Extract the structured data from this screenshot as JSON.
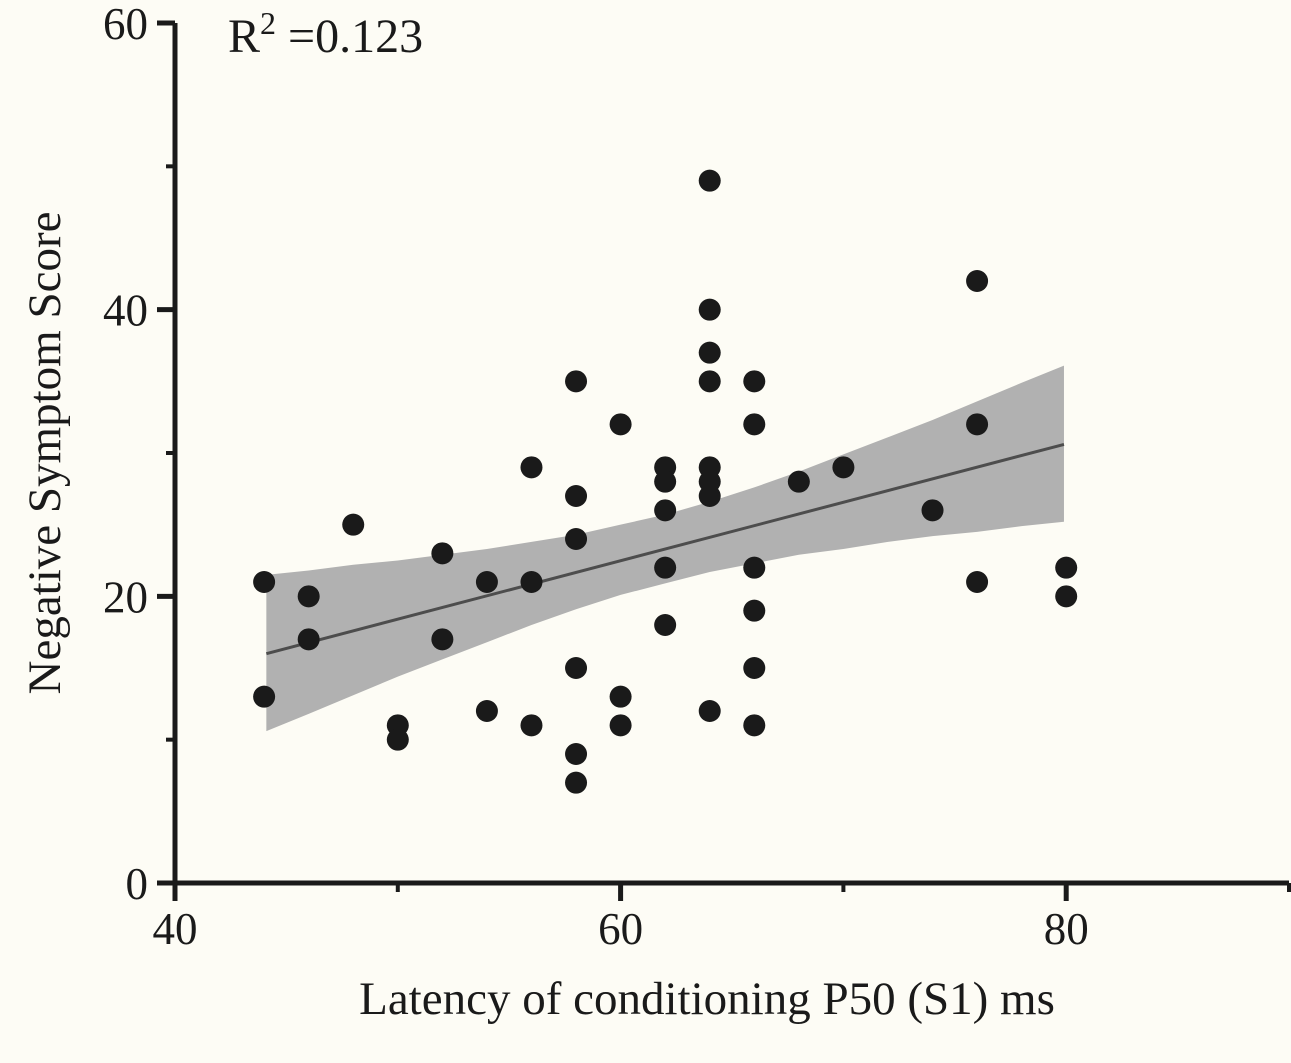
{
  "chart_data": {
    "type": "scatter",
    "title": "",
    "annotation": {
      "base": "R",
      "sup": "2",
      "rest": "=0.123"
    },
    "r_squared": 0.123,
    "xlabel": "Latency of conditioning P50 (S1) ms",
    "ylabel": "Negative Symptom Score",
    "xlim": [
      40,
      90
    ],
    "ylim": [
      0,
      60
    ],
    "x_major_ticks": [
      40,
      60,
      80
    ],
    "x_minor_ticks": [
      50,
      70,
      90
    ],
    "y_major_ticks": [
      0,
      20,
      40,
      60
    ],
    "y_minor_ticks": [
      10,
      30,
      50
    ],
    "grid": false,
    "legend": false,
    "points": [
      [
        44,
        21
      ],
      [
        44,
        13
      ],
      [
        46,
        20
      ],
      [
        46,
        17
      ],
      [
        48,
        25
      ],
      [
        50,
        11
      ],
      [
        50,
        10
      ],
      [
        52,
        23
      ],
      [
        52,
        17
      ],
      [
        54,
        21
      ],
      [
        54,
        12
      ],
      [
        56,
        29
      ],
      [
        56,
        21
      ],
      [
        56,
        11
      ],
      [
        58,
        35
      ],
      [
        58,
        27
      ],
      [
        58,
        24
      ],
      [
        58,
        15
      ],
      [
        58,
        9
      ],
      [
        58,
        7
      ],
      [
        60,
        32
      ],
      [
        60,
        13
      ],
      [
        60,
        11
      ],
      [
        62,
        29
      ],
      [
        62,
        28
      ],
      [
        62,
        26
      ],
      [
        62,
        22
      ],
      [
        62,
        18
      ],
      [
        64,
        49
      ],
      [
        64,
        40
      ],
      [
        64,
        37
      ],
      [
        64,
        35
      ],
      [
        64,
        29
      ],
      [
        64,
        28
      ],
      [
        64,
        27
      ],
      [
        64,
        12
      ],
      [
        66,
        35
      ],
      [
        66,
        32
      ],
      [
        66,
        22
      ],
      [
        66,
        19
      ],
      [
        66,
        15
      ],
      [
        66,
        11
      ],
      [
        68,
        28
      ],
      [
        70,
        29
      ],
      [
        74,
        26
      ],
      [
        76,
        42
      ],
      [
        76,
        32
      ],
      [
        76,
        21
      ],
      [
        80,
        22
      ],
      [
        80,
        20
      ]
    ],
    "regression_line": {
      "x1": 44.1,
      "y1": 16.0,
      "x2": 79.9,
      "y2": 30.6
    },
    "confidence_band": {
      "x": [
        44.1,
        46,
        48,
        50,
        52,
        54,
        56,
        58,
        60,
        62,
        64,
        66,
        68,
        70,
        72,
        74,
        76,
        78,
        79.9
      ],
      "upper": [
        21.5,
        21.8,
        22.2,
        22.5,
        22.9,
        23.3,
        23.8,
        24.3,
        25.0,
        25.7,
        26.6,
        27.6,
        28.7,
        29.9,
        31.1,
        32.3,
        33.6,
        34.9,
        36.1
      ],
      "lower": [
        10.6,
        11.8,
        13.1,
        14.4,
        15.6,
        16.8,
        18.0,
        19.1,
        20.1,
        20.9,
        21.7,
        22.3,
        22.9,
        23.3,
        23.8,
        24.2,
        24.5,
        24.9,
        25.2
      ]
    },
    "colors": {
      "background": "#fdfcf5",
      "point": "#1a1a1a",
      "band": "#b1b1b1",
      "regression_line": "#4d4d4d",
      "axis": "#1a1a1a"
    }
  }
}
